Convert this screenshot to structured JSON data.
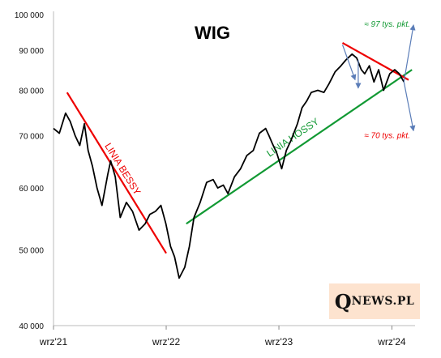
{
  "chart_data": {
    "type": "line",
    "title": "WIG",
    "xlabel": "",
    "ylabel": "",
    "yscale": "log",
    "ylim": [
      40000,
      100000
    ],
    "ytick_values": [
      40000,
      50000,
      60000,
      70000,
      80000,
      90000,
      100000
    ],
    "yticks": [
      "40 000",
      "50 000",
      "60 000",
      "70 000",
      "80 000",
      "90 000",
      "100 000"
    ],
    "xlim": [
      "2021-09-01",
      "2024-11-15"
    ],
    "xtick_dates": [
      "2021-09-01",
      "2022-09-01",
      "2023-09-01",
      "2024-09-01"
    ],
    "xticks": [
      "wrz'21",
      "wrz'22",
      "wrz'23",
      "wrz'24"
    ],
    "grid": false,
    "series": [
      {
        "name": "",
        "color": "#000000",
        "x": [
          "2021-09-01",
          "2021-09-20",
          "2021-10-10",
          "2021-10-25",
          "2021-11-10",
          "2021-11-25",
          "2021-12-10",
          "2021-12-22",
          "2022-01-05",
          "2022-01-20",
          "2022-02-05",
          "2022-02-24",
          "2022-03-05",
          "2022-03-20",
          "2022-04-05",
          "2022-04-25",
          "2022-05-15",
          "2022-06-05",
          "2022-06-25",
          "2022-07-10",
          "2022-07-28",
          "2022-08-15",
          "2022-08-31",
          "2022-09-15",
          "2022-09-28",
          "2022-10-13",
          "2022-10-31",
          "2022-11-15",
          "2022-11-30",
          "2022-12-20",
          "2023-01-10",
          "2023-01-31",
          "2023-02-15",
          "2023-03-05",
          "2023-03-20",
          "2023-04-10",
          "2023-04-30",
          "2023-05-20",
          "2023-06-10",
          "2023-06-30",
          "2023-07-20",
          "2023-07-31",
          "2023-08-10",
          "2023-08-25",
          "2023-09-10",
          "2023-09-25",
          "2023-10-10",
          "2023-10-31",
          "2023-11-15",
          "2023-11-30",
          "2023-12-15",
          "2024-01-05",
          "2024-01-25",
          "2024-02-10",
          "2024-03-01",
          "2024-03-20",
          "2024-04-05",
          "2024-04-25",
          "2024-05-10",
          "2024-05-25",
          "2024-06-05",
          "2024-06-20",
          "2024-07-05",
          "2024-07-20",
          "2024-08-05",
          "2024-08-25",
          "2024-09-10",
          "2024-09-25",
          "2024-10-10"
        ],
        "values": [
          71500,
          70500,
          74800,
          73000,
          70000,
          68000,
          72500,
          67000,
          64000,
          60000,
          57000,
          62500,
          65000,
          62000,
          55000,
          57500,
          56000,
          53000,
          54000,
          55500,
          56000,
          57000,
          54000,
          50500,
          49000,
          46000,
          47500,
          50500,
          55000,
          57500,
          61000,
          61500,
          60000,
          60500,
          59000,
          62000,
          63500,
          66000,
          67000,
          70500,
          71500,
          70000,
          68500,
          66500,
          63500,
          67000,
          69000,
          72500,
          76000,
          77500,
          79500,
          80000,
          79500,
          81500,
          84500,
          86000,
          87500,
          89000,
          88000,
          85000,
          84000,
          86000,
          82000,
          85000,
          80000,
          84000,
          85000,
          84000,
          82000
        ]
      }
    ],
    "trend_lines": [
      {
        "name": "LINIA BESSY",
        "color": "#ee0000",
        "x": [
          "2021-10-15",
          "2022-09-01"
        ],
        "values": [
          79500,
          49500
        ]
      },
      {
        "name": "LINIA HOSSY",
        "color": "#119933",
        "x": [
          "2022-11-05",
          "2024-11-05"
        ],
        "values": [
          54000,
          85000
        ]
      },
      {
        "name": "",
        "color": "#ee0000",
        "x": [
          "2024-03-25",
          "2024-10-25"
        ],
        "values": [
          92000,
          82500
        ]
      }
    ],
    "annotations": [
      {
        "text": "≈ 97 tys. pkt.",
        "color": "#119933",
        "x": "2024-10-30",
        "value": 96500
      },
      {
        "text": "≈ 70 tys. pkt.",
        "color": "#ee0000",
        "x": "2024-10-30",
        "value": 69500
      }
    ],
    "projection_arrows": {
      "color": "#5b7db8",
      "from": [
        "2024-10-10",
        82000
      ],
      "to": [
        [
          "2024-11-10",
          97000
        ],
        [
          "2024-11-10",
          71000
        ]
      ],
      "down_arrows": [
        {
          "from": [
            "2024-03-25",
            91500
          ],
          "to": [
            "2024-05-05",
            82500
          ]
        },
        {
          "from": [
            "2024-05-15",
            87500
          ],
          "to": [
            "2024-05-15",
            80500
          ]
        }
      ]
    }
  },
  "logo": {
    "q": "Q",
    "rest": "NEWS.PL"
  }
}
